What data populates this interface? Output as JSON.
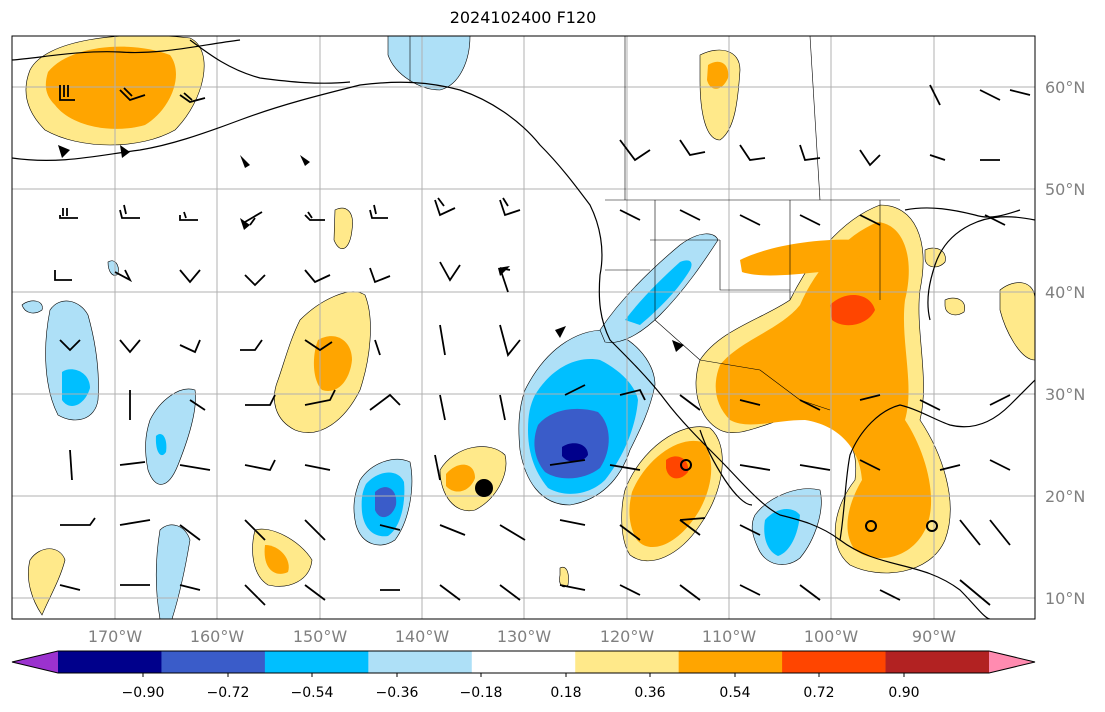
{
  "title": "2024102400 F120",
  "longitude_labels": [
    "170°W",
    "160°W",
    "150°W",
    "140°W",
    "130°W",
    "120°W",
    "110°W",
    "100°W",
    "90°W"
  ],
  "latitude_labels": [
    "60°N",
    "50°N",
    "40°N",
    "30°N",
    "20°N",
    "10°N"
  ],
  "colorbar": {
    "tick_labels": [
      "−0.90",
      "−0.72",
      "−0.54",
      "−0.36",
      "−0.18",
      "0.18",
      "0.36",
      "0.54",
      "0.72",
      "0.90"
    ],
    "colors": [
      "#9b32cf",
      "#00008b",
      "#3a5cc9",
      "#00bfff",
      "#aee0f7",
      "#ffffff",
      "#ffe98a",
      "#ffa500",
      "#ff4500",
      "#b22222",
      "#ff8bb0"
    ]
  },
  "map_colors": {
    "coast": "#000000",
    "grid": "#b0b0b0"
  },
  "marker": "storm-center-dot"
}
